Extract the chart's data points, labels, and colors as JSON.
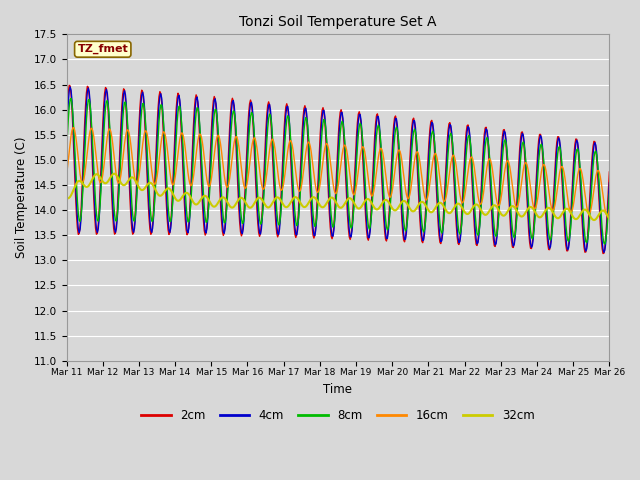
{
  "title": "Tonzi Soil Temperature Set A",
  "xlabel": "Time",
  "ylabel": "Soil Temperature (C)",
  "ylim": [
    11.0,
    17.5
  ],
  "yticks": [
    11.0,
    11.5,
    12.0,
    12.5,
    13.0,
    13.5,
    14.0,
    14.5,
    15.0,
    15.5,
    16.0,
    16.5,
    17.0,
    17.5
  ],
  "colors": {
    "2cm": "#dd0000",
    "4cm": "#0000cc",
    "8cm": "#00bb00",
    "16cm": "#ff8800",
    "32cm": "#cccc00"
  },
  "legend_label": "TZ_fmet",
  "legend_bg": "#ffffcc",
  "legend_border": "#886600",
  "plot_bg": "#d8d8d8",
  "grid_color": "#ffffff",
  "n_points": 600,
  "x_start": 11,
  "x_end": 26,
  "xtick_labels": [
    "Mar 11",
    "Mar 12",
    "Mar 13",
    "Mar 14",
    "Mar 15",
    "Mar 16",
    "Mar 17",
    "Mar 18",
    "Mar 19",
    "Mar 20",
    "Mar 21",
    "Mar 22",
    "Mar 23",
    "Mar 24",
    "Mar 25",
    "Mar 26"
  ],
  "xtick_positions": [
    11,
    12,
    13,
    14,
    15,
    16,
    17,
    18,
    19,
    20,
    21,
    22,
    23,
    24,
    25,
    26
  ]
}
